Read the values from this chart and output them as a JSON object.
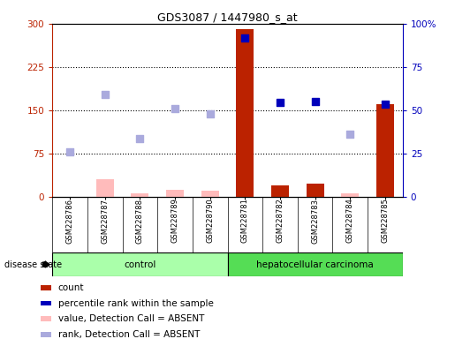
{
  "title": "GDS3087 / 1447980_s_at",
  "samples": [
    "GSM228786",
    "GSM228787",
    "GSM228788",
    "GSM228789",
    "GSM228790",
    "GSM228781",
    "GSM228782",
    "GSM228783",
    "GSM228784",
    "GSM228785"
  ],
  "count_present": [
    null,
    null,
    null,
    null,
    null,
    290,
    20,
    22,
    null,
    160
  ],
  "count_absent": [
    null,
    30,
    5,
    12,
    10,
    null,
    null,
    null,
    6,
    null
  ],
  "rank_present": [
    null,
    null,
    null,
    null,
    null,
    275,
    163,
    165,
    null,
    160
  ],
  "rank_absent": [
    78,
    178,
    100,
    152,
    143,
    null,
    null,
    null,
    108,
    null
  ],
  "ylim_left": [
    0,
    300
  ],
  "ylim_right": [
    0,
    100
  ],
  "yticks_left": [
    0,
    75,
    150,
    225,
    300
  ],
  "yticks_right": [
    0,
    25,
    50,
    75,
    100
  ],
  "ytick_labels_left": [
    "0",
    "75",
    "150",
    "225",
    "300"
  ],
  "ytick_labels_right": [
    "0",
    "25",
    "50",
    "75",
    "100%"
  ],
  "hline_values": [
    75,
    150,
    225
  ],
  "bar_color_present": "#bb2200",
  "bar_color_absent": "#ffbbbb",
  "dot_color_present": "#0000bb",
  "dot_color_absent": "#aaaadd",
  "control_bg": "#aaffaa",
  "carcinoma_bg": "#55dd55",
  "tick_label_area_bg": "#cccccc",
  "disease_state_label": "disease state",
  "control_label": "control",
  "carcinoma_label": "hepatocellular carcinoma",
  "legend_items": [
    {
      "color": "#bb2200",
      "label": "count"
    },
    {
      "color": "#0000bb",
      "label": "percentile rank within the sample"
    },
    {
      "color": "#ffbbbb",
      "label": "value, Detection Call = ABSENT"
    },
    {
      "color": "#aaaadd",
      "label": "rank, Detection Call = ABSENT"
    }
  ],
  "bar_width": 0.5,
  "dot_size": 40,
  "n_control": 5,
  "n_carcinoma": 5
}
